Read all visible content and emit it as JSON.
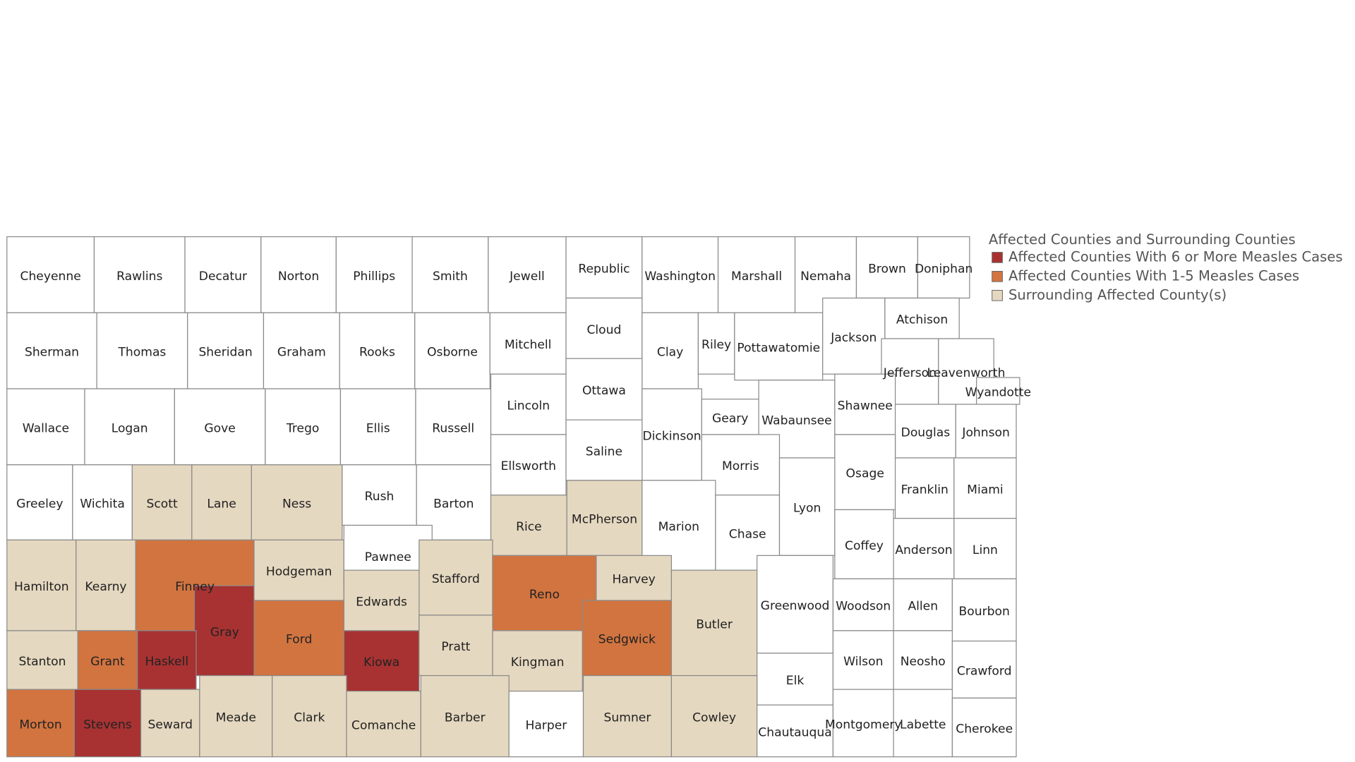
{
  "legend": {
    "title": "Affected Counties and Surrounding Counties",
    "items": [
      {
        "label": "Affected Counties With 6 or More Measles Cases",
        "color": "#a83232"
      },
      {
        "label": "Affected Counties With 1-5 Measles Cases",
        "color": "#d27440"
      },
      {
        "label": "Surrounding Affected County(s)",
        "color": "#e5d8c0"
      }
    ]
  },
  "counties": [
    {
      "name": "Cheyenne",
      "color": "#ffffff"
    },
    {
      "name": "Rawlins",
      "color": "#ffffff"
    },
    {
      "name": "Decatur",
      "color": "#ffffff"
    },
    {
      "name": "Norton",
      "color": "#ffffff"
    },
    {
      "name": "Phillips",
      "color": "#ffffff"
    },
    {
      "name": "Smith",
      "color": "#ffffff"
    },
    {
      "name": "Jewell",
      "color": "#ffffff"
    },
    {
      "name": "Republic",
      "color": "#ffffff"
    },
    {
      "name": "Washington",
      "color": "#ffffff"
    },
    {
      "name": "Marshall",
      "color": "#ffffff"
    },
    {
      "name": "Nemaha",
      "color": "#ffffff"
    },
    {
      "name": "Brown",
      "color": "#ffffff"
    },
    {
      "name": "Doniphan",
      "color": "#ffffff"
    },
    {
      "name": "Sherman",
      "color": "#ffffff"
    },
    {
      "name": "Thomas",
      "color": "#ffffff"
    },
    {
      "name": "Sheridan",
      "color": "#ffffff"
    },
    {
      "name": "Graham",
      "color": "#ffffff"
    },
    {
      "name": "Rooks",
      "color": "#ffffff"
    },
    {
      "name": "Osborne",
      "color": "#ffffff"
    },
    {
      "name": "Mitchell",
      "color": "#ffffff"
    },
    {
      "name": "Cloud",
      "color": "#ffffff"
    },
    {
      "name": "Clay",
      "color": "#ffffff"
    },
    {
      "name": "Riley",
      "color": "#ffffff"
    },
    {
      "name": "Pottawatomie",
      "color": "#ffffff"
    },
    {
      "name": "Jackson",
      "color": "#ffffff"
    },
    {
      "name": "Atchison",
      "color": "#ffffff"
    },
    {
      "name": "Jefferson",
      "color": "#ffffff"
    },
    {
      "name": "Leavenworth",
      "color": "#ffffff"
    },
    {
      "name": "Wyandotte",
      "color": "#ffffff"
    },
    {
      "name": "Wallace",
      "color": "#ffffff"
    },
    {
      "name": "Logan",
      "color": "#ffffff"
    },
    {
      "name": "Gove",
      "color": "#ffffff"
    },
    {
      "name": "Trego",
      "color": "#ffffff"
    },
    {
      "name": "Ellis",
      "color": "#ffffff"
    },
    {
      "name": "Russell",
      "color": "#ffffff"
    },
    {
      "name": "Lincoln",
      "color": "#ffffff"
    },
    {
      "name": "Ottawa",
      "color": "#ffffff"
    },
    {
      "name": "Dickinson",
      "color": "#ffffff"
    },
    {
      "name": "Geary",
      "color": "#ffffff"
    },
    {
      "name": "Wabaunsee",
      "color": "#ffffff"
    },
    {
      "name": "Shawnee",
      "color": "#ffffff"
    },
    {
      "name": "Douglas",
      "color": "#ffffff"
    },
    {
      "name": "Johnson",
      "color": "#ffffff"
    },
    {
      "name": "Ellsworth",
      "color": "#ffffff"
    },
    {
      "name": "Saline",
      "color": "#ffffff"
    },
    {
      "name": "Morris",
      "color": "#ffffff"
    },
    {
      "name": "Osage",
      "color": "#ffffff"
    },
    {
      "name": "Franklin",
      "color": "#ffffff"
    },
    {
      "name": "Miami",
      "color": "#ffffff"
    },
    {
      "name": "Greeley",
      "color": "#ffffff"
    },
    {
      "name": "Wichita",
      "color": "#ffffff"
    },
    {
      "name": "Scott",
      "color": "#e5d8c0"
    },
    {
      "name": "Lane",
      "color": "#e5d8c0"
    },
    {
      "name": "Ness",
      "color": "#e5d8c0"
    },
    {
      "name": "Rush",
      "color": "#ffffff"
    },
    {
      "name": "Barton",
      "color": "#ffffff"
    },
    {
      "name": "Rice",
      "color": "#e5d8c0"
    },
    {
      "name": "McPherson",
      "color": "#e5d8c0"
    },
    {
      "name": "Marion",
      "color": "#ffffff"
    },
    {
      "name": "Chase",
      "color": "#ffffff"
    },
    {
      "name": "Lyon",
      "color": "#ffffff"
    },
    {
      "name": "Coffey",
      "color": "#ffffff"
    },
    {
      "name": "Anderson",
      "color": "#ffffff"
    },
    {
      "name": "Linn",
      "color": "#ffffff"
    },
    {
      "name": "Hamilton",
      "color": "#e5d8c0"
    },
    {
      "name": "Kearny",
      "color": "#e5d8c0"
    },
    {
      "name": "Finney",
      "color": "#d27440"
    },
    {
      "name": "Gray",
      "color": "#a83232"
    },
    {
      "name": "Hodgeman",
      "color": "#e5d8c0"
    },
    {
      "name": "Pawnee",
      "color": "#ffffff"
    },
    {
      "name": "Stafford",
      "color": "#e5d8c0"
    },
    {
      "name": "Edwards",
      "color": "#e5d8c0"
    },
    {
      "name": "Reno",
      "color": "#d27440"
    },
    {
      "name": "Harvey",
      "color": "#e5d8c0"
    },
    {
      "name": "Butler",
      "color": "#e5d8c0"
    },
    {
      "name": "Greenwood",
      "color": "#ffffff"
    },
    {
      "name": "Woodson",
      "color": "#ffffff"
    },
    {
      "name": "Allen",
      "color": "#ffffff"
    },
    {
      "name": "Bourbon",
      "color": "#ffffff"
    },
    {
      "name": "Stanton",
      "color": "#e5d8c0"
    },
    {
      "name": "Grant",
      "color": "#d27440"
    },
    {
      "name": "Haskell",
      "color": "#a83232"
    },
    {
      "name": "Ford",
      "color": "#d27440"
    },
    {
      "name": "Kiowa",
      "color": "#a83232"
    },
    {
      "name": "Pratt",
      "color": "#e5d8c0"
    },
    {
      "name": "Kingman",
      "color": "#e5d8c0"
    },
    {
      "name": "Sedgwick",
      "color": "#d27440"
    },
    {
      "name": "Elk",
      "color": "#ffffff"
    },
    {
      "name": "Wilson",
      "color": "#ffffff"
    },
    {
      "name": "Neosho",
      "color": "#ffffff"
    },
    {
      "name": "Crawford",
      "color": "#ffffff"
    },
    {
      "name": "Morton",
      "color": "#d27440"
    },
    {
      "name": "Stevens",
      "color": "#a83232"
    },
    {
      "name": "Seward",
      "color": "#e5d8c0"
    },
    {
      "name": "Meade",
      "color": "#e5d8c0"
    },
    {
      "name": "Clark",
      "color": "#e5d8c0"
    },
    {
      "name": "Comanche",
      "color": "#e5d8c0"
    },
    {
      "name": "Barber",
      "color": "#e5d8c0"
    },
    {
      "name": "Harper",
      "color": "#ffffff"
    },
    {
      "name": "Sumner",
      "color": "#e5d8c0"
    },
    {
      "name": "Cowley",
      "color": "#e5d8c0"
    },
    {
      "name": "Chautauqua",
      "color": "#ffffff"
    },
    {
      "name": "Montgomery",
      "color": "#ffffff"
    },
    {
      "name": "Labette",
      "color": "#ffffff"
    },
    {
      "name": "Cherokee",
      "color": "#ffffff"
    }
  ]
}
